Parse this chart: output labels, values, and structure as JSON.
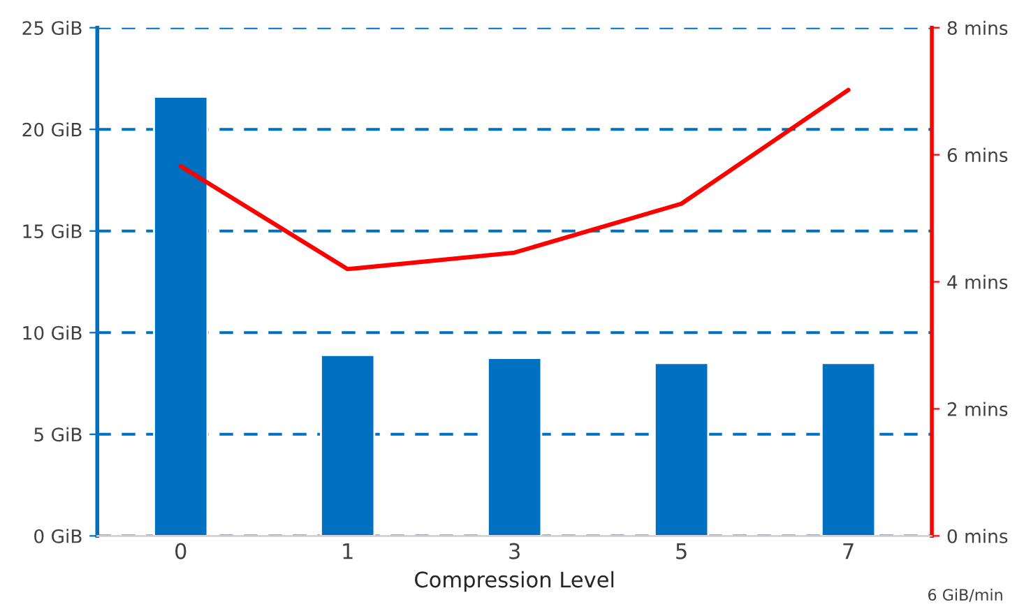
{
  "chart_data": {
    "type": "bar",
    "xlabel": "Compression Level",
    "categories": [
      "0",
      "1",
      "3",
      "5",
      "7"
    ],
    "series": [
      {
        "color": "#0070c0",
        "values": [
          21.6,
          8.9,
          8.75,
          8.5,
          8.5
        ]
      },
      {
        "type": "line",
        "axis": "y2",
        "color": "#ff0000",
        "values": [
          5.82,
          4.2,
          4.46,
          5.23,
          7.02
        ]
      }
    ],
    "ylim": [
      0,
      25
    ],
    "yticks": [
      {
        "value": 0,
        "label": "0 GiB"
      },
      {
        "value": 5,
        "label": "5 GiB"
      },
      {
        "value": 10,
        "label": "10 GiB"
      },
      {
        "value": 15,
        "label": "15 GiB"
      },
      {
        "value": 20,
        "label": "20 GiB"
      },
      {
        "value": 25,
        "label": "25 GiB"
      }
    ],
    "y2lim": [
      0,
      8
    ],
    "y2ticks": [
      {
        "value": 0,
        "label": "0 mins"
      },
      {
        "value": 2,
        "label": "2 mins"
      },
      {
        "value": 4,
        "label": "4 mins"
      },
      {
        "value": 6,
        "label": "6 mins"
      },
      {
        "value": 8,
        "label": "8 mins"
      }
    ],
    "grid": "y",
    "line_style": "solid",
    "marker": "none",
    "annotations": [
      "6 GiB/min"
    ]
  }
}
